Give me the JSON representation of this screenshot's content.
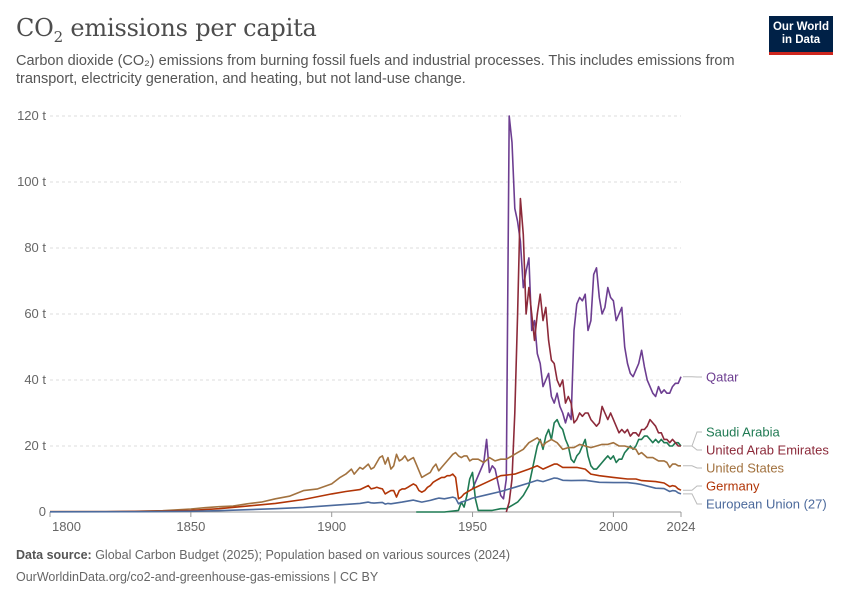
{
  "header": {
    "title_prefix": "CO",
    "title_sub": "2",
    "title_suffix": " emissions per capita",
    "subtitle": "Carbon dioxide (CO₂) emissions from burning fossil fuels and industrial processes. This includes emissions from transport, electricity generation, and heating, but not land-use change."
  },
  "logo": {
    "line1": "Our World",
    "line2": "in Data"
  },
  "footer": {
    "source_label": "Data source:",
    "source_text": " Global Carbon Budget (2025); Population based on various sources (2024)",
    "url_text": "OurWorldinData.org/co2-and-greenhouse-gas-emissions | CC BY"
  },
  "chart_data": {
    "type": "line",
    "title": "CO₂ emissions per capita",
    "xlabel": "",
    "ylabel": "",
    "xlim": [
      1800,
      2024
    ],
    "ylim": [
      0,
      120
    ],
    "y_ticks": [
      0,
      20,
      40,
      60,
      80,
      100,
      120
    ],
    "y_tick_labels": [
      "0",
      "20 t",
      "40 t",
      "60 t",
      "80 t",
      "100 t",
      "120 t"
    ],
    "x_ticks": [
      1800,
      1850,
      1900,
      1950,
      2000,
      2024
    ],
    "x_tick_labels": [
      "1800",
      "1850",
      "1900",
      "1950",
      "2000",
      "2024"
    ],
    "grid": true,
    "legend": "right, labels at line ends",
    "series": [
      {
        "name": "Qatar",
        "color": "#6d3e91",
        "x": [
          1950,
          1954,
          1955,
          1956,
          1957,
          1958,
          1960,
          1961,
          1962,
          1963,
          1964,
          1965,
          1966,
          1967,
          1968,
          1969,
          1970,
          1971,
          1972,
          1973,
          1974,
          1975,
          1976,
          1977,
          1978,
          1979,
          1980,
          1981,
          1982,
          1983,
          1984,
          1985,
          1986,
          1987,
          1988,
          1989,
          1990,
          1991,
          1992,
          1993,
          1994,
          1995,
          1996,
          1997,
          1998,
          1999,
          2000,
          2001,
          2002,
          2003,
          2004,
          2005,
          2006,
          2007,
          2008,
          2009,
          2010,
          2011,
          2012,
          2013,
          2014,
          2015,
          2016,
          2017,
          2018,
          2019,
          2020,
          2021,
          2022,
          2023,
          2024
        ],
        "y": [
          7,
          15,
          22,
          12,
          14,
          13,
          5,
          4,
          10,
          120,
          112,
          92,
          88,
          82,
          68,
          73,
          77,
          55,
          58,
          48,
          45,
          38,
          40,
          42,
          35,
          33,
          36,
          32,
          30,
          27,
          30,
          28,
          55,
          63,
          65,
          64,
          66,
          55,
          58,
          72,
          74,
          65,
          60,
          62,
          68,
          65,
          64,
          58,
          60,
          62,
          50,
          45,
          42,
          41,
          43,
          45,
          49,
          44,
          40,
          38,
          36,
          35,
          38,
          36,
          37,
          36,
          36,
          38,
          39,
          39,
          41
        ]
      },
      {
        "name": "Saudi Arabia",
        "color": "#1f7a53",
        "x": [
          1930,
          1935,
          1940,
          1945,
          1946,
          1947,
          1948,
          1949,
          1950,
          1951,
          1952,
          1953,
          1954,
          1955,
          1957,
          1960,
          1962,
          1964,
          1966,
          1968,
          1970,
          1971,
          1972,
          1973,
          1974,
          1975,
          1976,
          1977,
          1978,
          1979,
          1980,
          1981,
          1982,
          1983,
          1984,
          1985,
          1986,
          1987,
          1988,
          1989,
          1990,
          1991,
          1992,
          1993,
          1994,
          1995,
          1996,
          1997,
          1998,
          1999,
          2000,
          2001,
          2002,
          2003,
          2004,
          2005,
          2006,
          2007,
          2008,
          2009,
          2010,
          2011,
          2012,
          2013,
          2014,
          2015,
          2016,
          2017,
          2018,
          2019,
          2020,
          2021,
          2022,
          2023,
          2024
        ],
        "y": [
          0,
          0,
          0,
          0.5,
          3,
          1.5,
          5,
          10,
          12,
          4,
          0.5,
          0.5,
          0.5,
          0.5,
          0.5,
          1,
          1,
          2,
          3,
          5,
          8,
          12,
          16,
          20,
          22,
          19,
          23,
          25,
          22,
          27,
          28,
          26,
          25,
          22,
          20,
          16,
          15,
          17,
          18,
          20,
          22,
          17,
          14,
          13,
          13,
          14,
          15,
          16,
          17,
          16,
          17,
          15,
          16,
          16,
          18,
          19,
          20,
          19,
          20,
          22,
          22,
          23,
          23,
          22,
          21,
          22,
          21,
          22,
          21,
          21,
          20,
          20,
          21,
          21,
          20
        ]
      },
      {
        "name": "United Arab Emirates",
        "color": "#8c2a3a",
        "x": [
          1962,
          1963,
          1964,
          1965,
          1966,
          1967,
          1968,
          1969,
          1970,
          1971,
          1972,
          1973,
          1974,
          1975,
          1976,
          1977,
          1978,
          1979,
          1980,
          1981,
          1982,
          1983,
          1984,
          1985,
          1986,
          1987,
          1988,
          1989,
          1990,
          1991,
          1992,
          1993,
          1994,
          1995,
          1996,
          1997,
          1998,
          1999,
          2000,
          2001,
          2002,
          2003,
          2004,
          2005,
          2006,
          2007,
          2008,
          2009,
          2010,
          2011,
          2012,
          2013,
          2014,
          2015,
          2016,
          2017,
          2018,
          2019,
          2020,
          2021,
          2022,
          2023,
          2024
        ],
        "y": [
          0,
          3,
          10,
          30,
          60,
          95,
          84,
          60,
          68,
          60,
          52,
          60,
          66,
          58,
          62,
          52,
          46,
          45,
          40,
          38,
          40,
          33,
          35,
          33,
          27,
          28,
          30,
          29,
          30,
          30,
          28,
          27,
          26,
          27,
          32,
          30,
          28,
          30,
          28,
          26,
          24,
          25,
          24,
          25,
          23,
          24,
          24,
          23,
          25,
          25,
          26,
          28,
          27,
          26,
          24,
          24,
          22,
          22,
          21,
          22,
          21,
          20,
          20
        ]
      },
      {
        "name": "United States",
        "color": "#a2723f",
        "x": [
          1800,
          1820,
          1830,
          1840,
          1850,
          1855,
          1860,
          1865,
          1870,
          1875,
          1880,
          1885,
          1890,
          1895,
          1900,
          1903,
          1905,
          1907,
          1908,
          1910,
          1911,
          1913,
          1914,
          1915,
          1916,
          1917,
          1918,
          1919,
          1920,
          1921,
          1922,
          1923,
          1924,
          1925,
          1926,
          1927,
          1928,
          1929,
          1930,
          1931,
          1932,
          1933,
          1934,
          1935,
          1936,
          1937,
          1938,
          1939,
          1940,
          1941,
          1942,
          1943,
          1944,
          1945,
          1946,
          1947,
          1948,
          1949,
          1950,
          1952,
          1954,
          1956,
          1958,
          1960,
          1962,
          1964,
          1966,
          1968,
          1970,
          1972,
          1973,
          1974,
          1975,
          1976,
          1978,
          1980,
          1982,
          1984,
          1986,
          1988,
          1990,
          1992,
          1994,
          1996,
          1998,
          2000,
          2002,
          2004,
          2006,
          2008,
          2009,
          2010,
          2012,
          2014,
          2016,
          2018,
          2019,
          2020,
          2021,
          2022,
          2023,
          2024
        ],
        "y": [
          0.1,
          0.1,
          0.2,
          0.4,
          0.9,
          1.3,
          1.6,
          1.8,
          2.5,
          3,
          4,
          4.8,
          6.5,
          7,
          8.5,
          10.5,
          11.5,
          13,
          11.5,
          13.5,
          13,
          14.5,
          13,
          13.5,
          15,
          16.5,
          17,
          14.5,
          16.5,
          13,
          14,
          17.5,
          15.5,
          16,
          17,
          15.5,
          16,
          16.5,
          14.5,
          12.5,
          10.5,
          11,
          11.5,
          12,
          13.5,
          14.5,
          12.5,
          13.5,
          14.5,
          15.5,
          16.5,
          17.5,
          18,
          17,
          16.5,
          17,
          17,
          15.5,
          16,
          16,
          15,
          16.5,
          15.5,
          16,
          16,
          17,
          18,
          19,
          21,
          22,
          22.5,
          21.5,
          20,
          21,
          22,
          21,
          19,
          19.5,
          19.5,
          20.5,
          20,
          19.5,
          20,
          20.5,
          20.5,
          21,
          20,
          20,
          19.5,
          19,
          17.5,
          18,
          16.5,
          16.5,
          15.5,
          15.5,
          15,
          13.5,
          14.5,
          14.5,
          14,
          14
        ]
      },
      {
        "name": "Germany",
        "color": "#b13507",
        "x": [
          1800,
          1820,
          1840,
          1850,
          1860,
          1870,
          1880,
          1890,
          1900,
          1905,
          1910,
          1913,
          1914,
          1915,
          1916,
          1917,
          1918,
          1919,
          1920,
          1921,
          1922,
          1923,
          1924,
          1925,
          1926,
          1927,
          1928,
          1929,
          1930,
          1931,
          1932,
          1933,
          1934,
          1935,
          1936,
          1937,
          1938,
          1939,
          1940,
          1941,
          1942,
          1943,
          1944,
          1945,
          1946,
          1947,
          1948,
          1949,
          1950,
          1955,
          1960,
          1965,
          1970,
          1973,
          1975,
          1979,
          1980,
          1982,
          1985,
          1987,
          1990,
          1992,
          1995,
          2000,
          2005,
          2008,
          2010,
          2015,
          2018,
          2020,
          2021,
          2022,
          2023,
          2024
        ],
        "y": [
          0.1,
          0.1,
          0.3,
          0.5,
          1.0,
          1.8,
          2.6,
          3.8,
          5.5,
          6.2,
          6.8,
          8.0,
          7.0,
          7.2,
          7.5,
          7.2,
          7.0,
          5.5,
          6.0,
          6.5,
          6.5,
          4.5,
          6.5,
          7.0,
          7.0,
          7.5,
          8.0,
          8.5,
          8.0,
          6.5,
          6.0,
          6.5,
          7.5,
          8.0,
          9.0,
          9.5,
          10.0,
          10.5,
          10.5,
          11.0,
          11.0,
          11.5,
          10.5,
          4.0,
          4.5,
          5.5,
          6.0,
          6.5,
          7.0,
          9.0,
          11.0,
          11.5,
          13.0,
          14.0,
          13.0,
          14.5,
          14.5,
          13.5,
          13.5,
          13.5,
          13.0,
          11.5,
          11.0,
          10.5,
          10.0,
          10.0,
          9.5,
          9.2,
          8.8,
          7.7,
          8.0,
          7.8,
          7.0,
          6.6
        ]
      },
      {
        "name": "European Union (27)",
        "color": "#4c6a9c",
        "x": [
          1800,
          1830,
          1850,
          1860,
          1870,
          1880,
          1890,
          1900,
          1905,
          1910,
          1913,
          1914,
          1915,
          1918,
          1919,
          1920,
          1921,
          1925,
          1929,
          1930,
          1932,
          1935,
          1937,
          1938,
          1940,
          1943,
          1944,
          1945,
          1946,
          1948,
          1950,
          1955,
          1960,
          1965,
          1970,
          1973,
          1975,
          1979,
          1980,
          1982,
          1985,
          1990,
          1995,
          2000,
          2005,
          2008,
          2010,
          2015,
          2018,
          2020,
          2021,
          2022,
          2023,
          2024
        ],
        "y": [
          0.05,
          0.1,
          0.2,
          0.4,
          0.7,
          1.0,
          1.4,
          2.0,
          2.3,
          2.6,
          3.0,
          2.8,
          2.7,
          2.9,
          2.4,
          2.6,
          2.5,
          3.0,
          3.6,
          3.4,
          3.0,
          3.5,
          4.0,
          4.2,
          4.0,
          4.5,
          4.2,
          2.5,
          3.0,
          3.5,
          4.2,
          5.2,
          6.2,
          7.5,
          8.8,
          9.6,
          9.2,
          10.3,
          10.2,
          9.6,
          9.5,
          9.6,
          9.0,
          8.9,
          8.9,
          8.6,
          8.3,
          7.2,
          7.1,
          6.2,
          6.5,
          6.4,
          5.8,
          5.5
        ]
      }
    ]
  }
}
